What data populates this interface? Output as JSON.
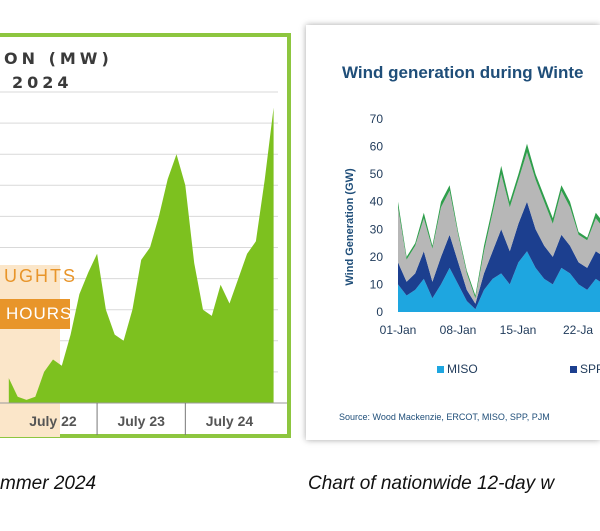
{
  "left_panel": {
    "title_line1": "ON (MW)",
    "title_line2": "2024",
    "annotation_top": "UGHTS",
    "annotation_badge": "HOURS",
    "caption": "mmer 2024"
  },
  "right_panel": {
    "caption": "Chart of nationwide 12-day w",
    "source": "Source: Wood Mackenzie, ERCOT, MISO, SPP, PJM"
  },
  "colors": {
    "panel_border": "#8dc63f",
    "left_area": "#7dc11f",
    "orange": "#e8952a",
    "highlight": "#fbe6c9",
    "title_blue": "#1f4e79",
    "miso": "#1ea6e0",
    "spp": "#1c3f8f",
    "gray_series": "#b7b7b7",
    "green_series": "#2e9e4b"
  },
  "chart_data": [
    {
      "type": "area",
      "title": "ON (MW) 2024",
      "xlabel": "",
      "ylabel": "",
      "categories": [
        "July 22",
        "July 23",
        "July 24"
      ],
      "x": [
        22.0,
        22.1,
        22.2,
        22.3,
        22.4,
        22.5,
        22.6,
        22.7,
        22.8,
        22.9,
        23.0,
        23.1,
        23.2,
        23.3,
        23.4,
        23.5,
        23.6,
        23.7,
        23.8,
        23.9,
        24.0,
        24.1,
        24.2,
        24.3,
        24.4,
        24.5,
        24.6,
        24.7,
        24.8,
        24.9,
        25.0
      ],
      "values": [
        8,
        2,
        1,
        2,
        10,
        14,
        12,
        22,
        35,
        42,
        48,
        30,
        22,
        20,
        30,
        46,
        50,
        60,
        72,
        80,
        70,
        45,
        30,
        28,
        38,
        32,
        40,
        48,
        52,
        72,
        95
      ],
      "ylim": [
        0,
        100
      ],
      "grid": true,
      "legend": "none"
    },
    {
      "type": "area",
      "title": "Wind generation during Winte",
      "xlabel": "",
      "ylabel": "Wind Generation (GW)",
      "categories": [
        "01-Jan",
        "08-Jan",
        "15-Jan",
        "22-Ja"
      ],
      "yticks": [
        0,
        10,
        20,
        30,
        40,
        50,
        60,
        70
      ],
      "ylim": [
        0,
        70
      ],
      "grid": false,
      "legend": "bottom",
      "x": [
        1,
        2,
        3,
        4,
        5,
        6,
        7,
        8,
        9,
        10,
        11,
        12,
        13,
        14,
        15,
        16,
        17,
        18,
        19,
        20,
        21,
        22,
        23,
        24,
        25
      ],
      "series": [
        {
          "name": "MISO",
          "values": [
            10,
            6,
            8,
            12,
            5,
            10,
            16,
            10,
            4,
            1,
            8,
            12,
            14,
            10,
            18,
            22,
            16,
            12,
            10,
            16,
            14,
            10,
            8,
            12,
            10
          ]
        },
        {
          "name": "SPP",
          "values": [
            8,
            5,
            6,
            10,
            6,
            10,
            12,
            8,
            4,
            2,
            6,
            10,
            16,
            12,
            14,
            18,
            14,
            12,
            10,
            12,
            10,
            8,
            8,
            10,
            10
          ]
        },
        {
          "values": [
            20,
            8,
            10,
            12,
            12,
            18,
            16,
            10,
            6,
            2,
            8,
            14,
            20,
            16,
            16,
            18,
            18,
            16,
            12,
            16,
            14,
            10,
            10,
            12,
            10
          ]
        },
        {
          "values": [
            2,
            1,
            1,
            2,
            1,
            2,
            2,
            1,
            1,
            1,
            2,
            2,
            3,
            2,
            2,
            3,
            2,
            2,
            2,
            2,
            2,
            1,
            1,
            2,
            2
          ]
        }
      ]
    }
  ]
}
